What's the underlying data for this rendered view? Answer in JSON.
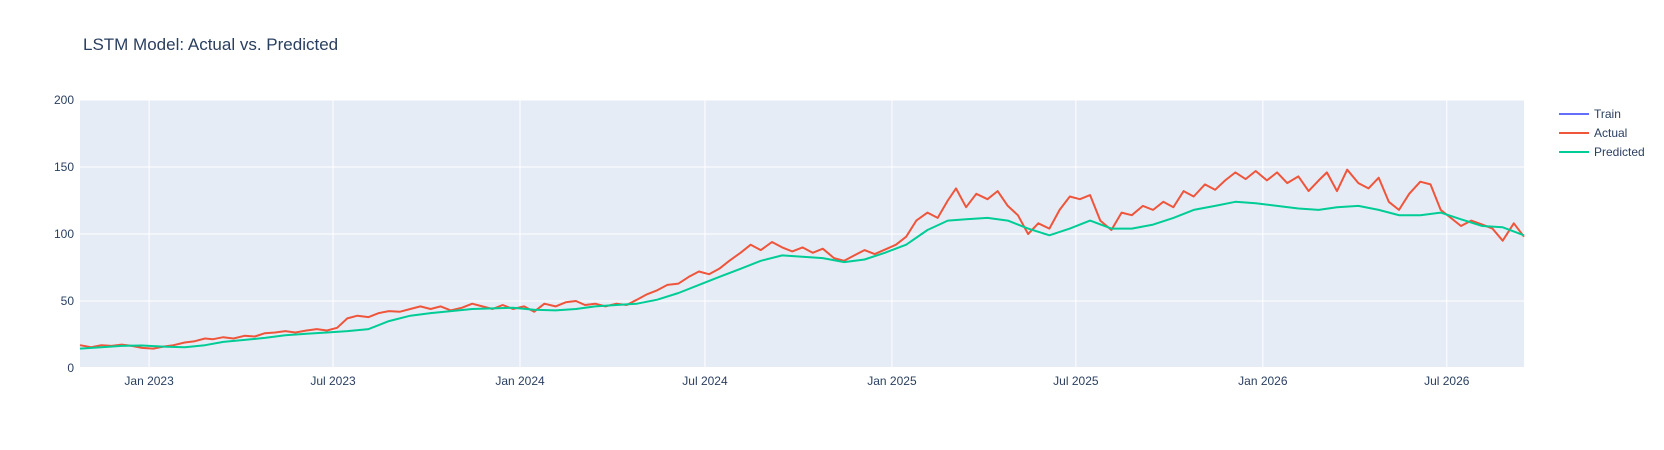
{
  "chart_data": {
    "type": "line",
    "title": "LSTM Model: Actual vs. Predicted",
    "xlabel": "",
    "ylabel": "",
    "x_range": [
      "2022-10-25",
      "2026-09-15"
    ],
    "ylim": [
      0,
      200
    ],
    "y_ticks": [
      0,
      50,
      100,
      150,
      200
    ],
    "x_ticks": [
      {
        "date": "2023-01-01",
        "label": "Jan 2023"
      },
      {
        "date": "2023-07-01",
        "label": "Jul 2023"
      },
      {
        "date": "2024-01-01",
        "label": "Jan 2024"
      },
      {
        "date": "2024-07-01",
        "label": "Jul 2024"
      },
      {
        "date": "2025-01-01",
        "label": "Jan 2025"
      },
      {
        "date": "2025-07-01",
        "label": "Jul 2025"
      },
      {
        "date": "2026-01-01",
        "label": "Jan 2026"
      },
      {
        "date": "2026-07-01",
        "label": "Jul 2026"
      }
    ],
    "grid": true,
    "legend_position": "top-right, outside plot",
    "colors": {
      "plot_bg": "#e5ecf6",
      "grid": "#ffffff",
      "text": "#2a3f5f",
      "train": "#636efa",
      "actual": "#ef553b",
      "predicted": "#00cc96"
    },
    "series": [
      {
        "name": "Train",
        "color": "#636efa",
        "points": []
      },
      {
        "name": "Actual",
        "color": "#ef553b",
        "points": [
          [
            "2022-10-25",
            17
          ],
          [
            "2022-11-05",
            15.5
          ],
          [
            "2022-11-15",
            17
          ],
          [
            "2022-11-25",
            16.5
          ],
          [
            "2022-12-05",
            17.5
          ],
          [
            "2022-12-15",
            16.5
          ],
          [
            "2022-12-25",
            15
          ],
          [
            "2023-01-05",
            14.5
          ],
          [
            "2023-01-15",
            16
          ],
          [
            "2023-01-25",
            17
          ],
          [
            "2023-02-05",
            19
          ],
          [
            "2023-02-15",
            20
          ],
          [
            "2023-02-25",
            22
          ],
          [
            "2023-03-05",
            21.5
          ],
          [
            "2023-03-15",
            23
          ],
          [
            "2023-03-25",
            22
          ],
          [
            "2023-04-05",
            24
          ],
          [
            "2023-04-15",
            23.5
          ],
          [
            "2023-04-25",
            26
          ],
          [
            "2023-05-05",
            26.5
          ],
          [
            "2023-05-15",
            27.5
          ],
          [
            "2023-05-25",
            26.5
          ],
          [
            "2023-06-05",
            28
          ],
          [
            "2023-06-15",
            29
          ],
          [
            "2023-06-25",
            28
          ],
          [
            "2023-07-05",
            30
          ],
          [
            "2023-07-15",
            37
          ],
          [
            "2023-07-25",
            39
          ],
          [
            "2023-08-05",
            38
          ],
          [
            "2023-08-15",
            41
          ],
          [
            "2023-08-25",
            42.5
          ],
          [
            "2023-09-05",
            42
          ],
          [
            "2023-09-15",
            44
          ],
          [
            "2023-09-25",
            46
          ],
          [
            "2023-10-05",
            44
          ],
          [
            "2023-10-15",
            46
          ],
          [
            "2023-10-25",
            43
          ],
          [
            "2023-11-05",
            45
          ],
          [
            "2023-11-15",
            48
          ],
          [
            "2023-11-25",
            46
          ],
          [
            "2023-12-05",
            44
          ],
          [
            "2023-12-15",
            47
          ],
          [
            "2023-12-25",
            44
          ],
          [
            "2024-01-05",
            46
          ],
          [
            "2024-01-15",
            42
          ],
          [
            "2024-01-25",
            48
          ],
          [
            "2024-02-05",
            46
          ],
          [
            "2024-02-15",
            49
          ],
          [
            "2024-02-25",
            50
          ],
          [
            "2024-03-05",
            47
          ],
          [
            "2024-03-15",
            48
          ],
          [
            "2024-03-25",
            46
          ],
          [
            "2024-04-05",
            48
          ],
          [
            "2024-04-15",
            47
          ],
          [
            "2024-04-25",
            51
          ],
          [
            "2024-05-05",
            55
          ],
          [
            "2024-05-15",
            58
          ],
          [
            "2024-05-25",
            62
          ],
          [
            "2024-06-05",
            63
          ],
          [
            "2024-06-15",
            68
          ],
          [
            "2024-06-25",
            72
          ],
          [
            "2024-07-05",
            70
          ],
          [
            "2024-07-15",
            74
          ],
          [
            "2024-07-25",
            80
          ],
          [
            "2024-08-05",
            86
          ],
          [
            "2024-08-15",
            92
          ],
          [
            "2024-08-25",
            88
          ],
          [
            "2024-09-05",
            94
          ],
          [
            "2024-09-15",
            90
          ],
          [
            "2024-09-25",
            87
          ],
          [
            "2024-10-05",
            90
          ],
          [
            "2024-10-15",
            86
          ],
          [
            "2024-10-25",
            89
          ],
          [
            "2024-11-05",
            82
          ],
          [
            "2024-11-15",
            80
          ],
          [
            "2024-11-25",
            84
          ],
          [
            "2024-12-05",
            88
          ],
          [
            "2024-12-15",
            85
          ],
          [
            "2025-01-05",
            92
          ],
          [
            "2025-01-15",
            98
          ],
          [
            "2025-01-25",
            110
          ],
          [
            "2025-02-05",
            116
          ],
          [
            "2025-02-15",
            112
          ],
          [
            "2025-02-25",
            125
          ],
          [
            "2025-03-05",
            134
          ],
          [
            "2025-03-15",
            120
          ],
          [
            "2025-03-25",
            130
          ],
          [
            "2025-04-05",
            126
          ],
          [
            "2025-04-15",
            132
          ],
          [
            "2025-04-25",
            121
          ],
          [
            "2025-05-05",
            114
          ],
          [
            "2025-05-15",
            100
          ],
          [
            "2025-05-25",
            108
          ],
          [
            "2025-06-05",
            104
          ],
          [
            "2025-06-15",
            118
          ],
          [
            "2025-06-25",
            128
          ],
          [
            "2025-07-05",
            126
          ],
          [
            "2025-07-15",
            129
          ],
          [
            "2025-07-25",
            110
          ],
          [
            "2025-08-05",
            103
          ],
          [
            "2025-08-15",
            116
          ],
          [
            "2025-08-25",
            114
          ],
          [
            "2025-09-05",
            121
          ],
          [
            "2025-09-15",
            118
          ],
          [
            "2025-09-25",
            124
          ],
          [
            "2025-10-05",
            120
          ],
          [
            "2025-10-15",
            132
          ],
          [
            "2025-10-25",
            128
          ],
          [
            "2025-11-05",
            137
          ],
          [
            "2025-11-15",
            133
          ],
          [
            "2025-11-25",
            140
          ],
          [
            "2025-12-05",
            146
          ],
          [
            "2025-12-15",
            141
          ],
          [
            "2025-12-25",
            147
          ],
          [
            "2026-01-05",
            140
          ],
          [
            "2026-01-15",
            146
          ],
          [
            "2026-01-25",
            138
          ],
          [
            "2026-02-05",
            143
          ],
          [
            "2026-02-15",
            132
          ],
          [
            "2026-02-25",
            140
          ],
          [
            "2026-03-05",
            146
          ],
          [
            "2026-03-15",
            132
          ],
          [
            "2026-03-25",
            148
          ],
          [
            "2026-04-05",
            138
          ],
          [
            "2026-04-15",
            134
          ],
          [
            "2026-04-25",
            142
          ],
          [
            "2026-05-05",
            124
          ],
          [
            "2026-05-15",
            118
          ],
          [
            "2026-05-25",
            130
          ],
          [
            "2026-06-05",
            139
          ],
          [
            "2026-06-15",
            137
          ],
          [
            "2026-06-25",
            118
          ],
          [
            "2026-07-05",
            112
          ],
          [
            "2026-07-15",
            106
          ],
          [
            "2026-07-25",
            110
          ],
          [
            "2026-08-05",
            107
          ],
          [
            "2026-08-15",
            104
          ],
          [
            "2026-08-25",
            95
          ],
          [
            "2026-09-05",
            108
          ],
          [
            "2026-09-15",
            98
          ]
        ]
      },
      {
        "name": "Predicted",
        "color": "#00cc96",
        "points": [
          [
            "2022-10-25",
            14.5
          ],
          [
            "2022-11-15",
            15.5
          ],
          [
            "2022-12-05",
            16.5
          ],
          [
            "2022-12-25",
            16.8
          ],
          [
            "2023-01-15",
            16.0
          ],
          [
            "2023-02-05",
            15.5
          ],
          [
            "2023-02-25",
            17.0
          ],
          [
            "2023-03-15",
            19.5
          ],
          [
            "2023-04-05",
            21.0
          ],
          [
            "2023-04-25",
            22.5
          ],
          [
            "2023-05-15",
            24.5
          ],
          [
            "2023-06-05",
            25.5
          ],
          [
            "2023-06-25",
            26.5
          ],
          [
            "2023-07-15",
            27.5
          ],
          [
            "2023-08-05",
            29
          ],
          [
            "2023-08-25",
            35
          ],
          [
            "2023-09-15",
            39
          ],
          [
            "2023-10-05",
            41
          ],
          [
            "2023-10-25",
            42.5
          ],
          [
            "2023-11-15",
            44
          ],
          [
            "2023-12-05",
            44.5
          ],
          [
            "2023-12-25",
            45
          ],
          [
            "2024-01-15",
            43.5
          ],
          [
            "2024-02-05",
            43
          ],
          [
            "2024-02-25",
            44
          ],
          [
            "2024-03-15",
            46
          ],
          [
            "2024-04-05",
            47
          ],
          [
            "2024-04-25",
            48
          ],
          [
            "2024-05-15",
            51
          ],
          [
            "2024-06-05",
            56
          ],
          [
            "2024-06-25",
            62
          ],
          [
            "2024-07-15",
            68
          ],
          [
            "2024-08-05",
            74
          ],
          [
            "2024-08-25",
            80
          ],
          [
            "2024-09-15",
            84
          ],
          [
            "2024-10-05",
            83
          ],
          [
            "2024-10-25",
            82
          ],
          [
            "2024-11-15",
            79
          ],
          [
            "2024-12-05",
            81
          ],
          [
            "2024-12-25",
            86
          ],
          [
            "2025-01-15",
            92
          ],
          [
            "2025-02-05",
            103
          ],
          [
            "2025-02-25",
            110
          ],
          [
            "2025-03-15",
            111
          ],
          [
            "2025-04-05",
            112
          ],
          [
            "2025-04-25",
            110
          ],
          [
            "2025-05-15",
            104
          ],
          [
            "2025-06-05",
            99
          ],
          [
            "2025-06-25",
            104
          ],
          [
            "2025-07-15",
            110
          ],
          [
            "2025-08-05",
            104
          ],
          [
            "2025-08-25",
            104
          ],
          [
            "2025-09-15",
            107
          ],
          [
            "2025-10-05",
            112
          ],
          [
            "2025-10-25",
            118
          ],
          [
            "2025-11-15",
            121
          ],
          [
            "2025-12-05",
            124
          ],
          [
            "2025-12-25",
            123
          ],
          [
            "2026-01-15",
            121
          ],
          [
            "2026-02-05",
            119
          ],
          [
            "2026-02-25",
            118
          ],
          [
            "2026-03-15",
            120
          ],
          [
            "2026-04-05",
            121
          ],
          [
            "2026-04-25",
            118
          ],
          [
            "2026-05-15",
            114
          ],
          [
            "2026-06-05",
            114
          ],
          [
            "2026-06-25",
            116
          ],
          [
            "2026-07-15",
            111
          ],
          [
            "2026-08-05",
            106
          ],
          [
            "2026-08-25",
            105
          ],
          [
            "2026-09-15",
            99
          ]
        ]
      }
    ]
  }
}
